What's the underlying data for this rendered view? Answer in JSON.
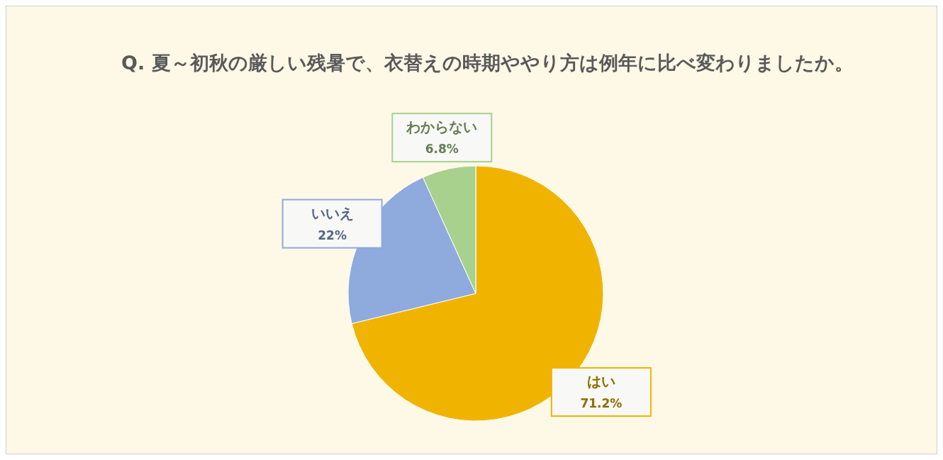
{
  "chart_data": {
    "type": "pie",
    "title": "Q. 夏～初秋の厳しい残暑で、衣替えの時期ややり方は例年に比べ変わりましたか。",
    "categories": [
      "はい",
      "いいえ",
      "わからない"
    ],
    "values": [
      71.2,
      22,
      6.8
    ],
    "value_labels": [
      "71.2%",
      "22%",
      "6.8%"
    ],
    "colors": [
      "#f0b400",
      "#8faadc",
      "#a9d18e"
    ],
    "legend": false
  }
}
